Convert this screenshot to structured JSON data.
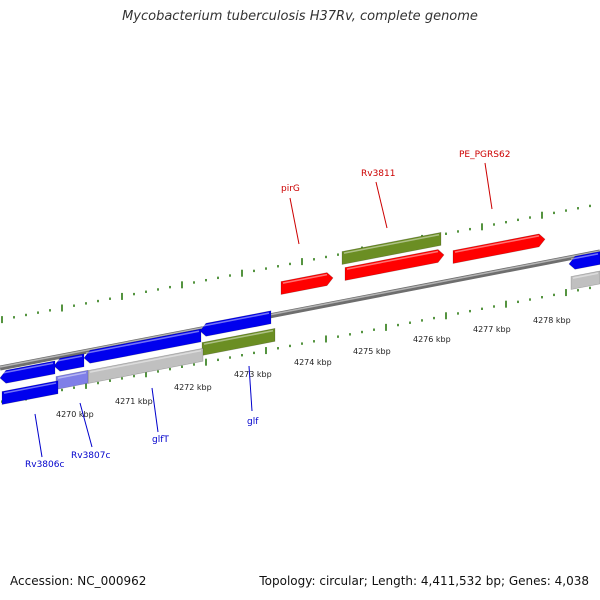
{
  "title": "Mycobacterium tuberculosis H37Rv, complete genome",
  "footer": {
    "accession": "Accession: NC_000962",
    "summary": "Topology: circular; Length: 4,411,532 bp; Genes: 4,038"
  },
  "colors": {
    "forward_gene": "#ff0000",
    "reverse_gene": "#0000ee",
    "special_gene": "#6b8e23",
    "pseudo_gene": "#c0c0c0",
    "tick": "#2a7a10",
    "backbone": "#808080",
    "forward_label": "#cc0000",
    "reverse_label": "#0000cc"
  },
  "scale_labels": [
    {
      "kbp": 4270,
      "text": "4270 kbp"
    },
    {
      "kbp": 4271,
      "text": "4271 kbp"
    },
    {
      "kbp": 4272,
      "text": "4272 kbp"
    },
    {
      "kbp": 4273,
      "text": "4273 kbp"
    },
    {
      "kbp": 4274,
      "text": "4274 kbp"
    },
    {
      "kbp": 4275,
      "text": "4275 kbp"
    },
    {
      "kbp": 4276,
      "text": "4276 kbp"
    },
    {
      "kbp": 4277,
      "text": "4277 kbp"
    },
    {
      "kbp": 4278,
      "text": "4278 kbp"
    }
  ],
  "gene_labels": [
    {
      "text": "pirG",
      "strand": "+"
    },
    {
      "text": "Rv3811",
      "strand": "+"
    },
    {
      "text": "PE_PGRS62",
      "strand": "+"
    },
    {
      "text": "Rv3806c",
      "strand": "-"
    },
    {
      "text": "Rv3807c",
      "strand": "-"
    },
    {
      "text": "glfT",
      "strand": "-"
    },
    {
      "text": "glf",
      "strand": "-"
    }
  ]
}
